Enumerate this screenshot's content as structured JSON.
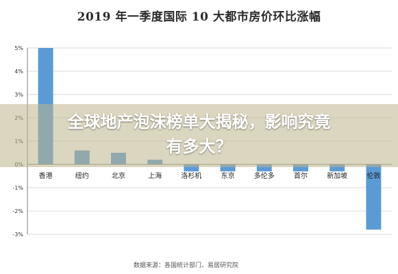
{
  "colors": {
    "bar": "#5b9bd5",
    "bar_edge": "#4a86c0",
    "grid": "#d9d9d9",
    "axis": "#7f7f7f",
    "banner": "#bcb48c"
  },
  "overlay": {
    "line1": "全球地产泡沫榜单大揭秘，影响究竟",
    "line2": "有多大？"
  },
  "source": "数据来源：各国统计部门、易居研究院",
  "chart_data": {
    "type": "bar",
    "title": "2019 年一季度国际 10 大都市房价环比涨幅",
    "categories": [
      "香港",
      "纽约",
      "北京",
      "上海",
      "洛杉机",
      "东京",
      "多伦多",
      "首尔",
      "新加坡",
      "伦敦"
    ],
    "values": [
      5.0,
      0.6,
      0.5,
      0.2,
      -0.3,
      -0.3,
      -0.3,
      -0.3,
      -0.3,
      -2.8
    ],
    "ylim": [
      -3,
      5
    ],
    "yticks": [
      5,
      4,
      3,
      2,
      1,
      0,
      -1,
      -2,
      -3
    ],
    "ytick_labels": [
      "5%",
      "4%",
      "3%",
      "2%",
      "1%",
      "0%",
      "-1%",
      "-2%",
      "-3%"
    ],
    "xlabel": "",
    "ylabel": "",
    "grid": true,
    "legend": "none"
  }
}
